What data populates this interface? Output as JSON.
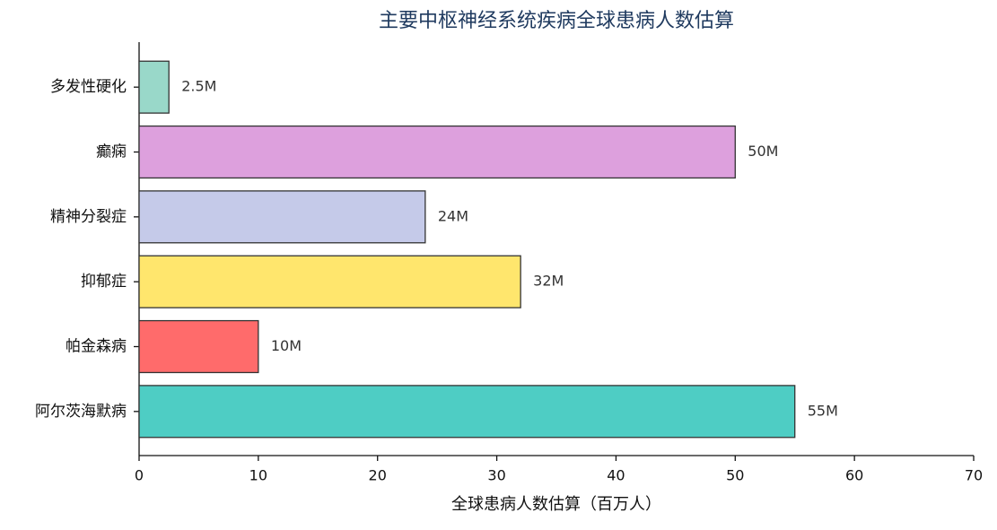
{
  "chart_data": {
    "type": "barh",
    "title": "主要中枢神经系统疾病全球患病人数估算",
    "xlabel": "全球患病人数估算（百万人）",
    "categories": [
      "多发性硬化",
      "癫痫",
      "精神分裂症",
      "抑郁症",
      "帕金森病",
      "阿尔茨海默病"
    ],
    "values": [
      2.5,
      50,
      24,
      32,
      10,
      55
    ],
    "value_labels": [
      "2.5M",
      "50M",
      "24M",
      "32M",
      "10M",
      "55M"
    ],
    "colors": [
      "#99d8c9",
      "#dda0dd",
      "#c5cae9",
      "#ffe66d",
      "#ff6b6b",
      "#4ecdc4"
    ],
    "xlim": [
      0,
      70
    ],
    "xticks": [
      0,
      10,
      20,
      30,
      40,
      50,
      60,
      70
    ],
    "grid": false
  }
}
